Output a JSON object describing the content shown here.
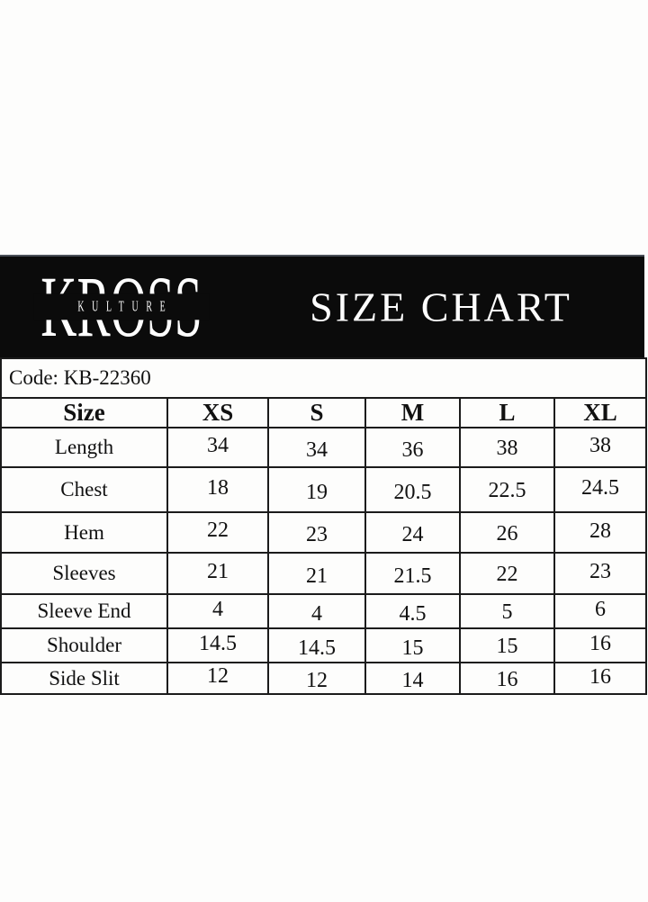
{
  "header": {
    "brand_primary": "KROSS",
    "brand_secondary": "KULTURE",
    "title": "SIZE CHART",
    "band_background": "#0b0b0b",
    "text_color": "#ffffff"
  },
  "product": {
    "code_line": "Code: KB-22360"
  },
  "chart_data": {
    "type": "table",
    "title": "SIZE CHART",
    "columns": [
      "Size",
      "XS",
      "S",
      "M",
      "L",
      "XL"
    ],
    "rows": [
      {
        "label": "Length",
        "values": [
          "34",
          "34",
          "36",
          "38",
          "38"
        ]
      },
      {
        "label": "Chest",
        "values": [
          "18",
          "19",
          "20.5",
          "22.5",
          "24.5"
        ]
      },
      {
        "label": "Hem",
        "values": [
          "22",
          "23",
          "24",
          "26",
          "28"
        ]
      },
      {
        "label": "Sleeves",
        "values": [
          "21",
          "21",
          "21.5",
          "22",
          "23"
        ]
      },
      {
        "label": "Sleeve End",
        "values": [
          "4",
          "4",
          "4.5",
          "5",
          "6"
        ]
      },
      {
        "label": "Shoulder",
        "values": [
          "14.5",
          "14.5",
          "15",
          "15",
          "16"
        ]
      },
      {
        "label": "Side Slit",
        "values": [
          "12",
          "12",
          "14",
          "16",
          "16"
        ]
      }
    ]
  },
  "colors": {
    "page_background": "#fdfdfc",
    "band_background": "#0b0b0b",
    "table_border": "#1b1b1b",
    "text": "#111111"
  }
}
